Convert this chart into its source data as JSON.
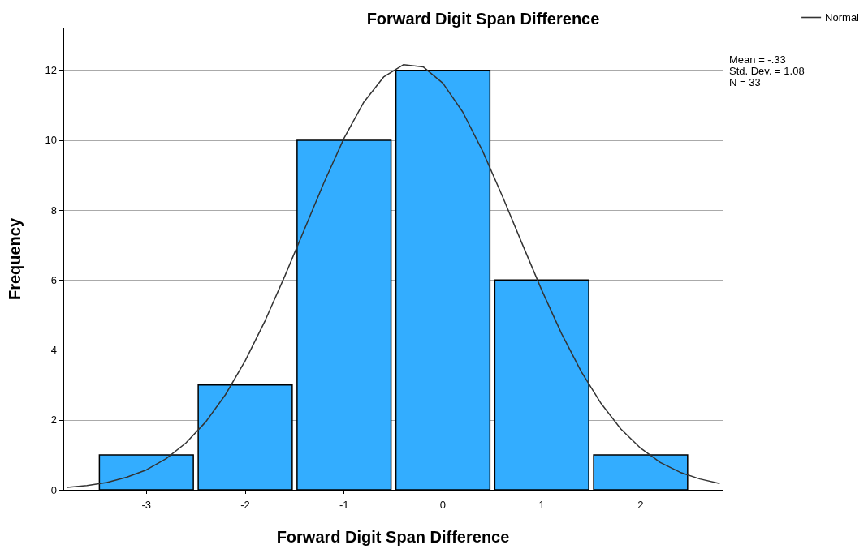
{
  "chart_data": {
    "type": "histogram",
    "title": "Forward Digit Span Difference",
    "xlabel": "Forward Digit Span Difference",
    "ylabel": "Frequency",
    "bins": [
      -3.5,
      -2.5,
      -1.5,
      -0.5,
      0.5,
      1.5,
      2.5
    ],
    "values": [
      1,
      3,
      10,
      12,
      6,
      1
    ],
    "color": "#33adff",
    "series": [
      {
        "type": "line",
        "name": "Normal",
        "color": "#333333",
        "x": [
          -3.8,
          -3.6,
          -3.4,
          -3.2,
          -3.0,
          -2.8,
          -2.6,
          -2.4,
          -2.2,
          -2.0,
          -1.8,
          -1.6,
          -1.4,
          -1.2,
          -1.0,
          -0.8,
          -0.6,
          -0.4,
          -0.2,
          0,
          0.2,
          0.4,
          0.6,
          0.8,
          1.0,
          1.2,
          1.4,
          1.6,
          1.8,
          2.0,
          2.2,
          2.4,
          2.6,
          2.8
        ],
        "values": [
          0.07,
          0.12,
          0.21,
          0.36,
          0.57,
          0.89,
          1.34,
          1.94,
          2.72,
          3.69,
          4.83,
          6.11,
          7.46,
          8.81,
          10.06,
          11.09,
          11.81,
          12.16,
          12.1,
          11.63,
          10.81,
          9.7,
          8.41,
          7.05,
          5.71,
          4.47,
          3.38,
          2.47,
          1.74,
          1.19,
          0.78,
          0.5,
          0.31,
          0.18
        ]
      }
    ],
    "xlim": [
      -3.84,
      2.83
    ],
    "xticks": [
      -3,
      -2,
      -1,
      0,
      1,
      2
    ],
    "ylim": [
      0,
      13.2
    ],
    "yticks": [
      0,
      2,
      4,
      6,
      8,
      10,
      12
    ],
    "grid": "y",
    "legend": "top right",
    "marker": "none",
    "line_style": "solid",
    "annotations": [
      "Mean = -.33",
      "Std. Dev. = 1.08",
      "N = 33"
    ]
  }
}
